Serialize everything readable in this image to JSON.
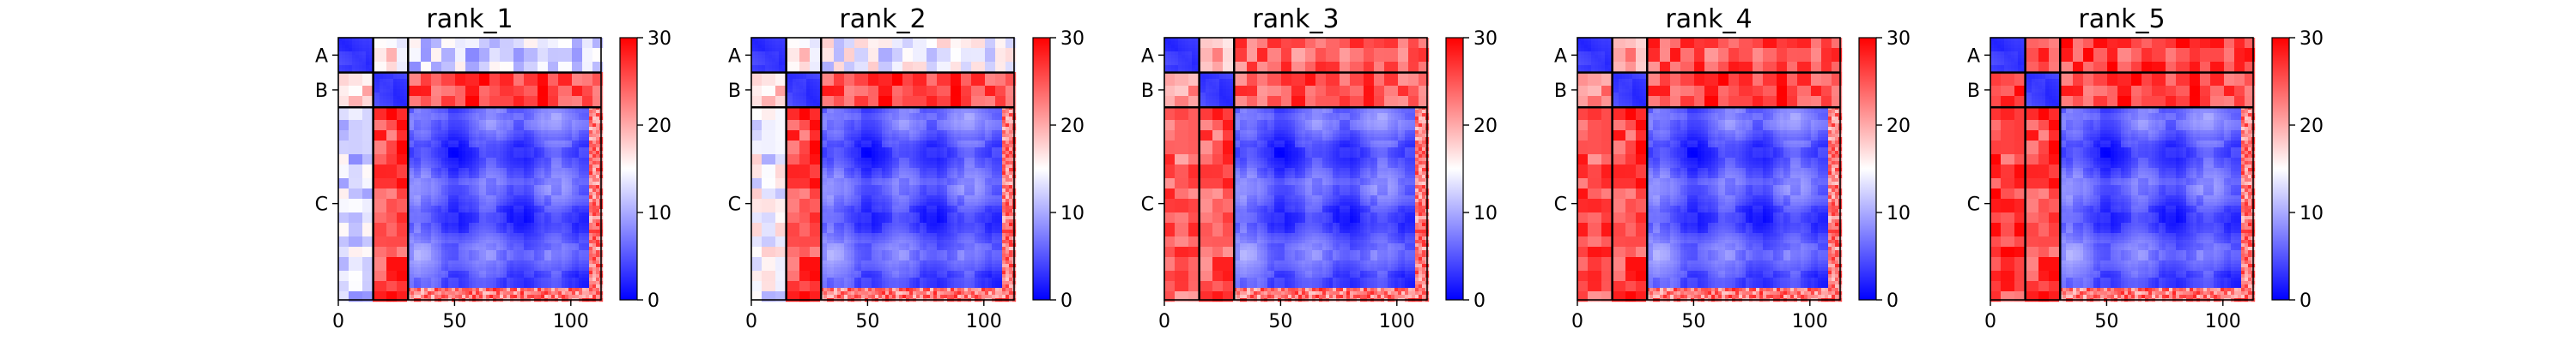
{
  "chart_data": [
    {
      "type": "heatmap",
      "title": "rank_1",
      "x_ticks": [
        0,
        50,
        100
      ],
      "xlim": [
        0,
        113
      ],
      "chain_labels": [
        "A",
        "B",
        "C"
      ],
      "chain_boundaries": [
        0,
        15,
        30,
        113
      ],
      "colorbar": {
        "min": 0,
        "max": 30,
        "ticks": [
          0,
          10,
          20,
          30
        ]
      },
      "inter_chain_mean": {
        "A-B": 17,
        "A-C": 12,
        "B-C": 26
      }
    },
    {
      "type": "heatmap",
      "title": "rank_2",
      "x_ticks": [
        0,
        50,
        100
      ],
      "xlim": [
        0,
        113
      ],
      "chain_labels": [
        "A",
        "B",
        "C"
      ],
      "chain_boundaries": [
        0,
        15,
        30,
        113
      ],
      "colorbar": {
        "min": 0,
        "max": 30,
        "ticks": [
          0,
          10,
          20,
          30
        ]
      },
      "inter_chain_mean": {
        "A-B": 17,
        "A-C": 14,
        "B-C": 26
      }
    },
    {
      "type": "heatmap",
      "title": "rank_3",
      "x_ticks": [
        0,
        50,
        100
      ],
      "xlim": [
        0,
        113
      ],
      "chain_labels": [
        "A",
        "B",
        "C"
      ],
      "chain_boundaries": [
        0,
        15,
        30,
        113
      ],
      "colorbar": {
        "min": 0,
        "max": 30,
        "ticks": [
          0,
          10,
          20,
          30
        ]
      },
      "inter_chain_mean": {
        "A-B": 20,
        "A-C": 24,
        "B-C": 25
      }
    },
    {
      "type": "heatmap",
      "title": "rank_4",
      "x_ticks": [
        0,
        50,
        100
      ],
      "xlim": [
        0,
        113
      ],
      "chain_labels": [
        "A",
        "B",
        "C"
      ],
      "chain_boundaries": [
        0,
        15,
        30,
        113
      ],
      "colorbar": {
        "min": 0,
        "max": 30,
        "ticks": [
          0,
          10,
          20,
          30
        ]
      },
      "inter_chain_mean": {
        "A-B": 21,
        "A-C": 25,
        "B-C": 26
      }
    },
    {
      "type": "heatmap",
      "title": "rank_5",
      "x_ticks": [
        0,
        50,
        100
      ],
      "xlim": [
        0,
        113
      ],
      "chain_labels": [
        "A",
        "B",
        "C"
      ],
      "chain_boundaries": [
        0,
        15,
        30,
        113
      ],
      "colorbar": {
        "min": 0,
        "max": 30,
        "ticks": [
          0,
          10,
          20,
          30
        ]
      },
      "inter_chain_mean": {
        "A-B": 26,
        "A-C": 26,
        "B-C": 26
      }
    }
  ],
  "colors": {
    "low": "#0000ff",
    "mid": "#ffffff",
    "high": "#ff0000",
    "chain_line": "#000000"
  }
}
